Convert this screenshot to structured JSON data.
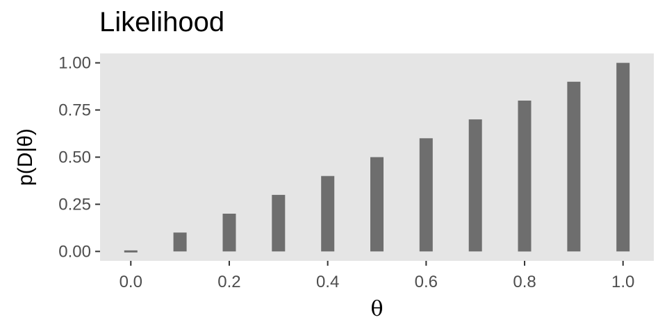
{
  "chart_data": {
    "type": "bar",
    "title": "Likelihood",
    "xlabel": "θ",
    "ylabel": "p(D|θ)",
    "x": [
      0.0,
      0.1,
      0.2,
      0.3,
      0.4,
      0.5,
      0.6,
      0.7,
      0.8,
      0.9,
      1.0
    ],
    "values": [
      0.0,
      0.1,
      0.2,
      0.3,
      0.4,
      0.5,
      0.6,
      0.7,
      0.8,
      0.9,
      1.0
    ],
    "xticks": [
      "0.0",
      "0.2",
      "0.4",
      "0.6",
      "0.8",
      "1.0"
    ],
    "yticks": [
      "0.00",
      "0.25",
      "0.50",
      "0.75",
      "1.00"
    ],
    "xlim": [
      -0.0625,
      1.0625
    ],
    "ylim": [
      -0.05,
      1.05
    ],
    "grid": false,
    "colors": {
      "bar": "#6e6e6e",
      "panel": "#e5e5e5",
      "tick": "#333333"
    }
  }
}
